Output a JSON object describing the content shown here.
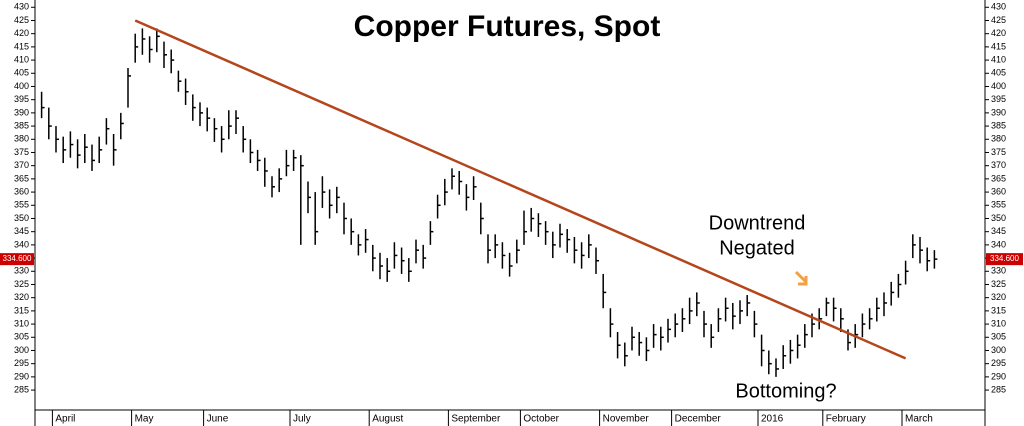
{
  "chart_data": {
    "type": "hlc",
    "title": "Copper Futures, Spot",
    "categories": [
      null,
      null,
      "April",
      null,
      null,
      null,
      null,
      null,
      null,
      null,
      null,
      null,
      null,
      "May",
      null,
      null,
      null,
      null,
      null,
      null,
      null,
      null,
      null,
      "June",
      null,
      null,
      null,
      null,
      null,
      null,
      null,
      null,
      null,
      null,
      null,
      "July",
      null,
      null,
      null,
      null,
      null,
      null,
      null,
      null,
      null,
      null,
      "August",
      null,
      null,
      null,
      null,
      null,
      null,
      null,
      null,
      null,
      null,
      "September",
      null,
      null,
      null,
      null,
      null,
      null,
      null,
      null,
      null,
      "October",
      null,
      null,
      null,
      null,
      null,
      null,
      null,
      null,
      null,
      null,
      "November",
      null,
      null,
      null,
      null,
      null,
      null,
      null,
      null,
      null,
      "December",
      null,
      null,
      null,
      null,
      null,
      null,
      null,
      null,
      null,
      null,
      null,
      "2016",
      null,
      null,
      null,
      null,
      null,
      null,
      null,
      null,
      "February",
      null,
      null,
      null,
      null,
      null,
      null,
      null,
      null,
      null,
      null,
      "March",
      null,
      null,
      null,
      null
    ],
    "series": [
      {
        "color": "#000000",
        "high": [
          398,
          392,
          385,
          381,
          383,
          380,
          382,
          378,
          381,
          388,
          382,
          390,
          407,
          420,
          422,
          419,
          422,
          417,
          414,
          406,
          403,
          397,
          394,
          392,
          388,
          385,
          391,
          391,
          385,
          380,
          376,
          373,
          366,
          369,
          376,
          376,
          374,
          364,
          360,
          366,
          361,
          362,
          356,
          350,
          344,
          346,
          340,
          337,
          335,
          341,
          339,
          335,
          342,
          340,
          349,
          359,
          365,
          369,
          368,
          363,
          366,
          356,
          344,
          344,
          341,
          337,
          342,
          353,
          354,
          352,
          349,
          345,
          348,
          346,
          343,
          341,
          344,
          339,
          329,
          316,
          307,
          303,
          309,
          307,
          305,
          310,
          309,
          312,
          314,
          316,
          320,
          322,
          315,
          310,
          316,
          320,
          318,
          319,
          321,
          315,
          306,
          300,
          297,
          302,
          304,
          306,
          310,
          314,
          316,
          320,
          320,
          316,
          308,
          310,
          314,
          316,
          320,
          322,
          326,
          329,
          334,
          344,
          343,
          339,
          338
        ],
        "low": [
          388,
          380,
          375,
          371,
          373,
          369,
          371,
          368,
          371,
          378,
          370,
          380,
          392,
          409,
          412,
          409,
          413,
          407,
          405,
          398,
          393,
          387,
          385,
          383,
          379,
          375,
          380,
          382,
          375,
          371,
          368,
          362,
          358,
          360,
          366,
          368,
          340,
          352,
          340,
          354,
          350,
          352,
          344,
          340,
          336,
          337,
          330,
          327,
          326,
          331,
          329,
          326,
          333,
          331,
          340,
          350,
          355,
          361,
          359,
          353,
          357,
          344,
          333,
          335,
          331,
          328,
          333,
          340,
          345,
          343,
          340,
          335,
          339,
          337,
          333,
          331,
          335,
          329,
          316,
          305,
          297,
          294,
          300,
          298,
          296,
          301,
          300,
          303,
          305,
          307,
          310,
          313,
          305,
          301,
          307,
          311,
          308,
          310,
          313,
          305,
          294,
          291,
          290,
          293,
          295,
          297,
          301,
          305,
          308,
          313,
          311,
          307,
          300,
          301,
          305,
          308,
          311,
          313,
          317,
          320,
          325,
          335,
          333,
          330,
          331
        ],
        "close": [
          392,
          385,
          380,
          376,
          378,
          374,
          377,
          372,
          376,
          384,
          376,
          386,
          404,
          415,
          418,
          414,
          419,
          412,
          410,
          402,
          398,
          392,
          390,
          388,
          384,
          380,
          385,
          388,
          380,
          375,
          372,
          368,
          362,
          365,
          370,
          373,
          370,
          358,
          345,
          360,
          355,
          358,
          350,
          345,
          340,
          342,
          335,
          332,
          330,
          336,
          334,
          330,
          338,
          335,
          345,
          355,
          360,
          366,
          364,
          358,
          362,
          350,
          338,
          340,
          336,
          332,
          338,
          345,
          350,
          348,
          345,
          340,
          344,
          342,
          338,
          336,
          340,
          334,
          322,
          310,
          302,
          298,
          305,
          303,
          300,
          306,
          305,
          308,
          310,
          312,
          315,
          318,
          310,
          305,
          312,
          316,
          313,
          315,
          318,
          310,
          300,
          295,
          293,
          298,
          300,
          302,
          306,
          310,
          312,
          318,
          316,
          312,
          303,
          306,
          310,
          312,
          316,
          318,
          322,
          325,
          330,
          340,
          338,
          334,
          334.6
        ]
      }
    ],
    "last_price": {
      "value": 334.6,
      "label": "334.600",
      "color": "#cc0000"
    },
    "trendline": {
      "x": [
        13,
        120
      ],
      "y": [
        425,
        297
      ],
      "color": "#b5451b"
    },
    "annotations": [
      {
        "text": "Downtrend"
      },
      {
        "text": "Negated"
      },
      {
        "text": "Bottoming?"
      }
    ],
    "ylim": [
      282,
      432
    ],
    "yticks": [
      285,
      290,
      295,
      300,
      305,
      310,
      315,
      320,
      325,
      330,
      335,
      340,
      345,
      350,
      355,
      360,
      365,
      370,
      375,
      380,
      385,
      390,
      395,
      400,
      405,
      410,
      415,
      420,
      425,
      430
    ]
  }
}
